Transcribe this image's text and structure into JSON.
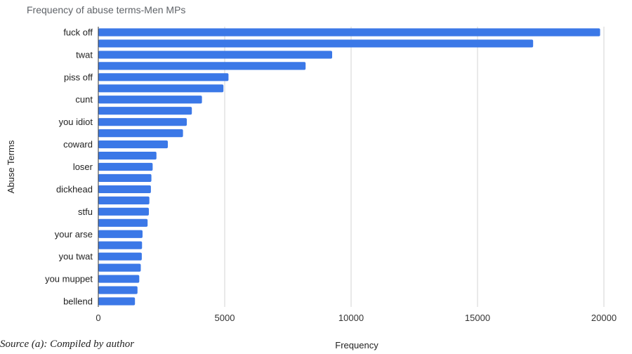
{
  "chart_data": {
    "type": "bar",
    "orientation": "horizontal",
    "title": "Frequency of abuse terms-Men MPs",
    "xlabel": "Frequency",
    "ylabel": "Abuse Terms",
    "xlim": [
      0,
      20500
    ],
    "xticks": [
      0,
      5000,
      10000,
      15000,
      20000
    ],
    "grid": true,
    "legend": "none",
    "bar_color": "#3b78e7",
    "categories": [
      "fuck off",
      "",
      "twat",
      "",
      "piss off",
      "",
      "cunt",
      "",
      "you idiot",
      "",
      "coward",
      "",
      "loser",
      "",
      "dickhead",
      "",
      "stfu",
      "",
      "your arse",
      "",
      "you twat",
      "",
      "you muppet",
      "",
      "bellend"
    ],
    "values": [
      19850,
      17200,
      9250,
      8200,
      5150,
      4950,
      4100,
      3700,
      3500,
      3350,
      2750,
      2300,
      2150,
      2100,
      2080,
      2020,
      2000,
      1950,
      1750,
      1730,
      1720,
      1680,
      1620,
      1550,
      1450
    ]
  },
  "caption_fragment": "Source (a): Compiled by author"
}
